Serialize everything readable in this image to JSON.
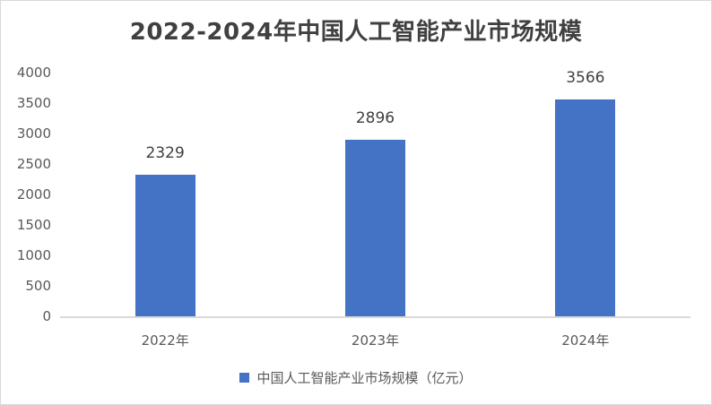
{
  "chart_data": {
    "type": "bar",
    "title": "2022-2024年中国人工智能产业市场规模",
    "categories": [
      "2022年",
      "2023年",
      "2024年"
    ],
    "series": [
      {
        "name": "中国人工智能产业市场规模（亿元）",
        "values": [
          2329,
          2896,
          3566
        ],
        "color": "#4472c4"
      }
    ],
    "data_labels": [
      "2329",
      "2896",
      "3566"
    ],
    "xlabel": "",
    "ylabel": "",
    "ylim": [
      0,
      4000
    ],
    "yticks": [
      "4000",
      "3500",
      "3000",
      "2500",
      "2000",
      "1500",
      "1000",
      "500",
      "0"
    ],
    "grid": false,
    "legend_position": "bottom"
  }
}
